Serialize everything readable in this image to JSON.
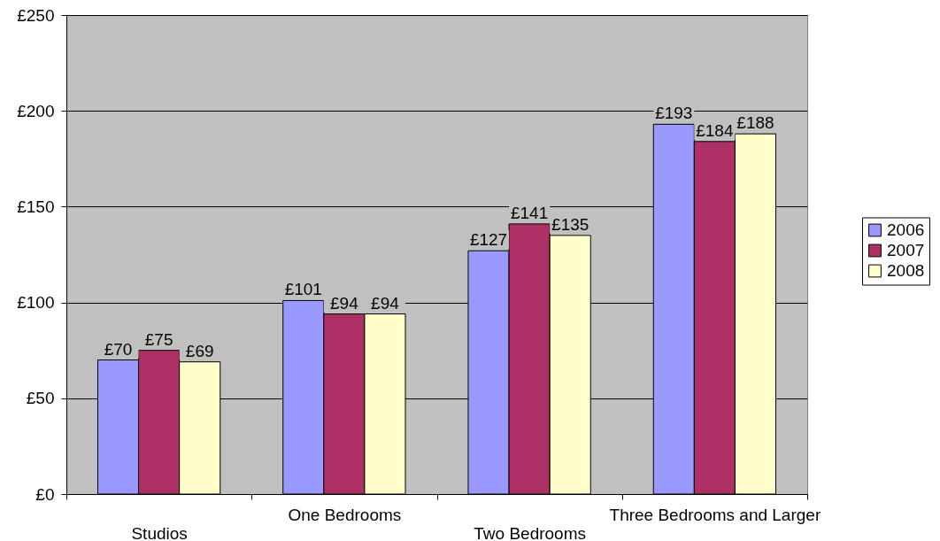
{
  "chart_data": {
    "type": "bar",
    "categories": [
      "Studios",
      "One Bedrooms",
      "Two Bedrooms",
      "Three Bedrooms and Larger"
    ],
    "series": [
      {
        "name": "2006",
        "color": "#9999ff",
        "values": [
          70,
          101,
          127,
          193
        ],
        "value_labels": [
          "£70",
          "£101",
          "£127",
          "£193"
        ]
      },
      {
        "name": "2007",
        "color": "#af3066",
        "values": [
          75,
          94,
          141,
          184
        ],
        "value_labels": [
          "£75",
          "£94",
          "£141",
          "£184"
        ]
      },
      {
        "name": "2008",
        "color": "#ffffcc",
        "values": [
          69,
          94,
          135,
          188
        ],
        "value_labels": [
          "£69",
          "£94",
          "£135",
          "£188"
        ]
      }
    ],
    "ylim": [
      0,
      250
    ],
    "yticks": [
      {
        "value": 0,
        "label": "£0"
      },
      {
        "value": 50,
        "label": "£50"
      },
      {
        "value": 100,
        "label": "£100"
      },
      {
        "value": 150,
        "label": "£150"
      },
      {
        "value": 200,
        "label": "£200"
      },
      {
        "value": 250,
        "label": "£250"
      }
    ],
    "grid": "y",
    "legend": "right"
  }
}
